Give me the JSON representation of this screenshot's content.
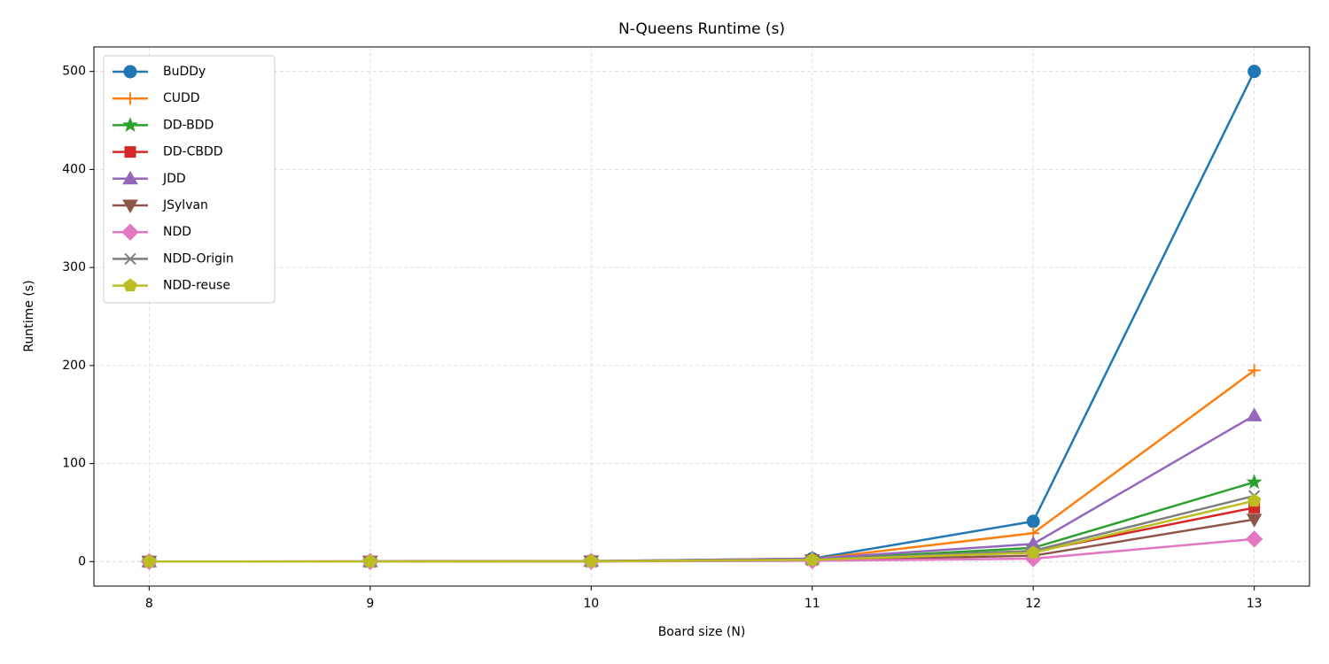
{
  "chart_data": {
    "type": "line",
    "title": "N-Queens Runtime (s)",
    "x_label": "Board size (N)",
    "y_label": "Runtime (s)",
    "x": [
      8,
      9,
      10,
      11,
      12,
      13
    ],
    "xlim": [
      7.75,
      13.25
    ],
    "xticks": [
      8,
      9,
      10,
      11,
      12,
      13
    ],
    "ylim": [
      -25,
      525
    ],
    "yticks": [
      0,
      100,
      200,
      300,
      400,
      500
    ],
    "grid": true,
    "legend": "upper left",
    "series": [
      {
        "name": "BuDDy",
        "color": "#1f77b4",
        "marker": "circle",
        "values": [
          0.02,
          0.1,
          0.5,
          3,
          41,
          500
        ]
      },
      {
        "name": "CUDD",
        "color": "#ff7f0e",
        "marker": "plus",
        "values": [
          0.02,
          0.1,
          0.4,
          2.5,
          29,
          195
        ]
      },
      {
        "name": "DD-BDD",
        "color": "#2ca02c",
        "marker": "star",
        "values": [
          0.02,
          0.1,
          0.3,
          2,
          14,
          81
        ]
      },
      {
        "name": "DD-CBDD",
        "color": "#d62728",
        "marker": "square",
        "values": [
          0.02,
          0.1,
          0.3,
          1.8,
          10,
          55
        ]
      },
      {
        "name": "JDD",
        "color": "#9467bd",
        "marker": "triangle-up",
        "values": [
          0.05,
          0.2,
          0.5,
          3,
          18,
          149
        ]
      },
      {
        "name": "JSylvan",
        "color": "#8c564b",
        "marker": "triangle-down",
        "values": [
          0.05,
          0.2,
          0.4,
          1.5,
          6,
          43
        ]
      },
      {
        "name": "NDD",
        "color": "#e377c2",
        "marker": "diamond",
        "values": [
          0.01,
          0.05,
          0.2,
          0.8,
          3,
          23
        ]
      },
      {
        "name": "NDD-Origin",
        "color": "#7f7f7f",
        "marker": "x",
        "values": [
          0.02,
          0.1,
          0.3,
          2,
          11,
          67
        ]
      },
      {
        "name": "NDD-reuse",
        "color": "#bcbd22",
        "marker": "pentagon",
        "values": [
          0.02,
          0.1,
          0.3,
          1.8,
          9,
          62
        ]
      }
    ]
  }
}
